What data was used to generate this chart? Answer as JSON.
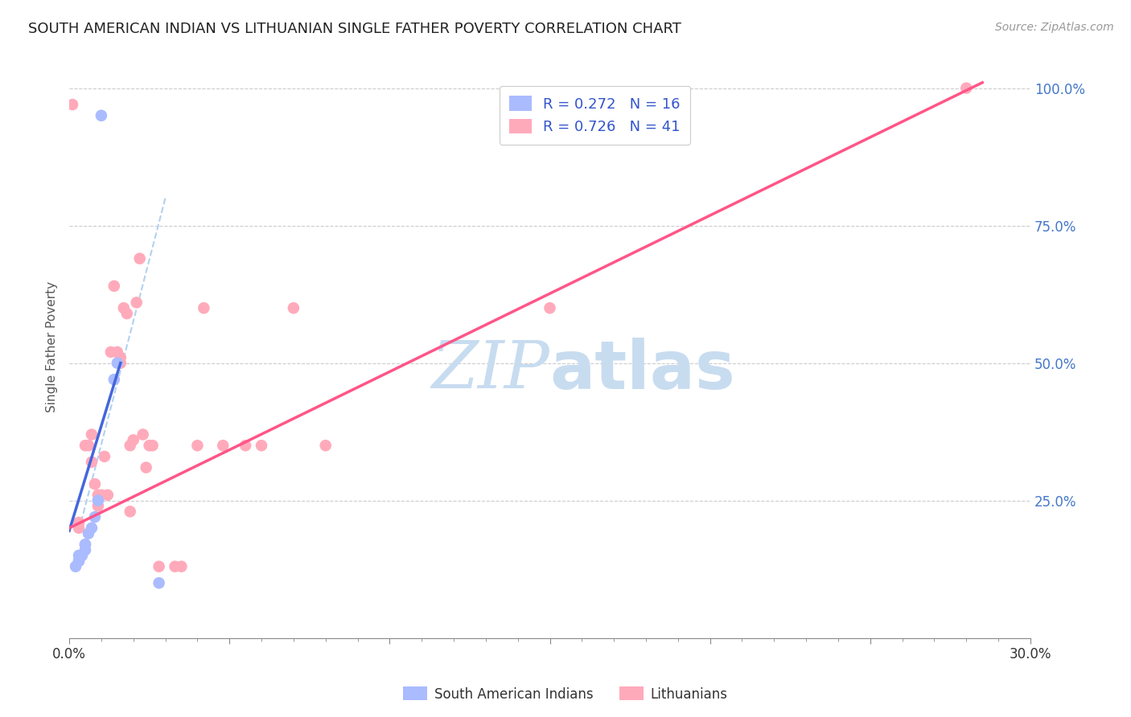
{
  "title": "SOUTH AMERICAN INDIAN VS LITHUANIAN SINGLE FATHER POVERTY CORRELATION CHART",
  "source": "Source: ZipAtlas.com",
  "ylabel": "Single Father Poverty",
  "legend_1_label": "R = 0.272   N = 16",
  "legend_2_label": "R = 0.726   N = 41",
  "legend_bottom_1": "South American Indians",
  "legend_bottom_2": "Lithuanians",
  "blue_color": "#aabbff",
  "pink_color": "#ffaabb",
  "blue_line_color": "#4466dd",
  "pink_line_color": "#ff5588",
  "dashed_line_color": "#aaccee",
  "watermark_zip_color": "#c8dcf0",
  "watermark_atlas_color": "#c8dcf0",
  "blue_scatter_x": [
    0.01,
    0.015,
    0.014,
    0.009,
    0.008,
    0.007,
    0.006,
    0.005,
    0.005,
    0.005,
    0.004,
    0.003,
    0.003,
    0.003,
    0.002,
    0.028
  ],
  "blue_scatter_y": [
    0.95,
    0.5,
    0.47,
    0.25,
    0.22,
    0.2,
    0.19,
    0.17,
    0.17,
    0.16,
    0.15,
    0.15,
    0.14,
    0.14,
    0.13,
    0.1
  ],
  "pink_scatter_x": [
    0.001,
    0.003,
    0.003,
    0.005,
    0.006,
    0.007,
    0.007,
    0.008,
    0.009,
    0.009,
    0.01,
    0.011,
    0.012,
    0.013,
    0.014,
    0.015,
    0.016,
    0.016,
    0.017,
    0.018,
    0.019,
    0.019,
    0.02,
    0.021,
    0.022,
    0.023,
    0.024,
    0.025,
    0.026,
    0.028,
    0.033,
    0.035,
    0.04,
    0.042,
    0.048,
    0.055,
    0.06,
    0.07,
    0.08,
    0.15,
    0.28
  ],
  "pink_scatter_y": [
    0.97,
    0.21,
    0.2,
    0.35,
    0.35,
    0.37,
    0.32,
    0.28,
    0.26,
    0.24,
    0.26,
    0.33,
    0.26,
    0.52,
    0.64,
    0.52,
    0.51,
    0.5,
    0.6,
    0.59,
    0.35,
    0.23,
    0.36,
    0.61,
    0.69,
    0.37,
    0.31,
    0.35,
    0.35,
    0.13,
    0.13,
    0.13,
    0.35,
    0.6,
    0.35,
    0.35,
    0.35,
    0.6,
    0.35,
    0.6,
    1.0
  ],
  "blue_line_x": [
    0.0,
    0.016
  ],
  "blue_line_y": [
    0.195,
    0.5
  ],
  "pink_line_x": [
    0.0,
    0.285
  ],
  "pink_line_y": [
    0.2,
    1.01
  ],
  "dashed_line_x": [
    0.003,
    0.03
  ],
  "dashed_line_y": [
    0.195,
    0.8
  ],
  "xmin": 0.0,
  "xmax": 0.3,
  "ymin": 0.0,
  "ymax": 1.06,
  "x_tick_positions": [
    0.0,
    0.05,
    0.1,
    0.15,
    0.2,
    0.25,
    0.3
  ],
  "y_tick_positions": [
    0.0,
    0.25,
    0.5,
    0.75,
    1.0
  ]
}
